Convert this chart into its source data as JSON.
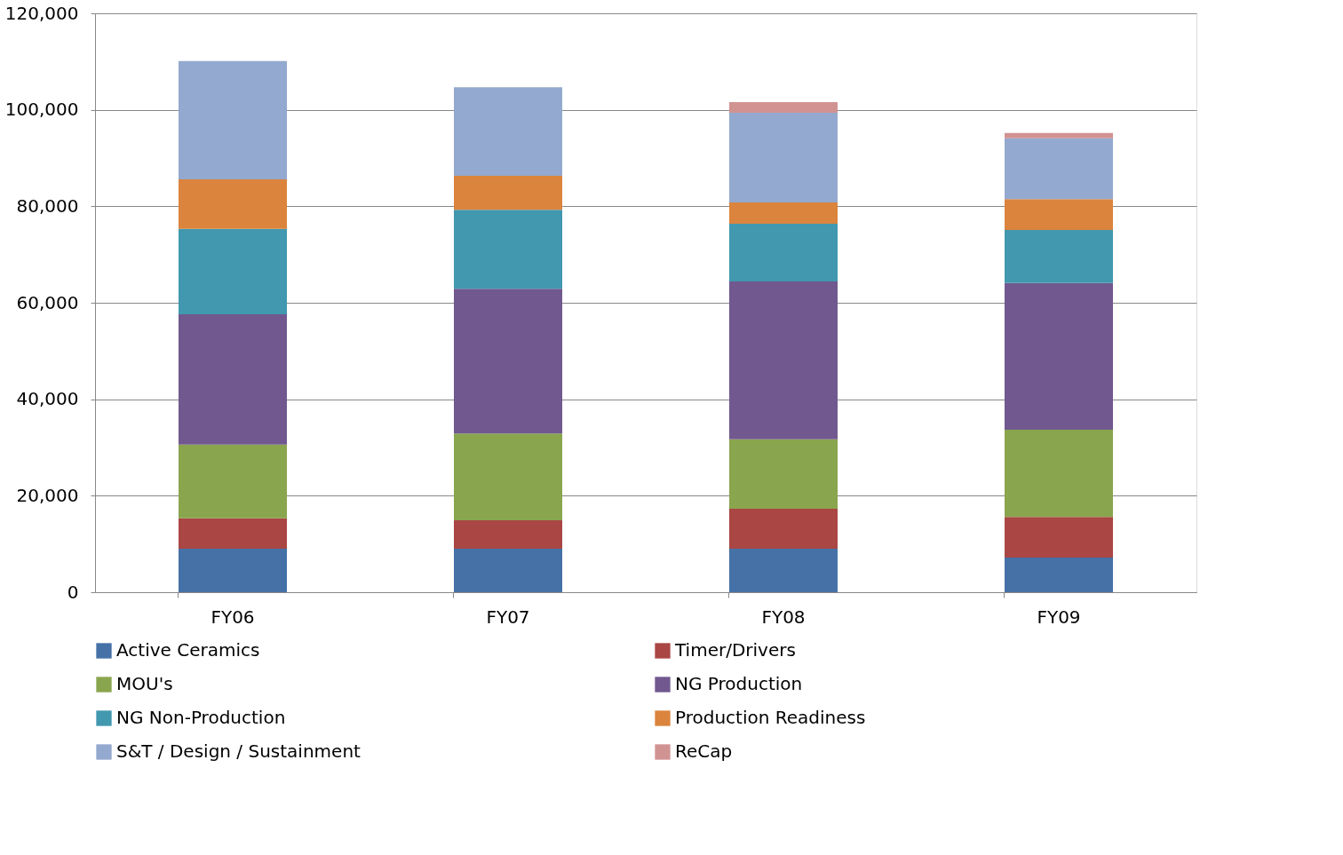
{
  "chart_data": {
    "type": "bar",
    "stacked": true,
    "categories": [
      "FY06",
      "FY07",
      "FY08",
      "FY09"
    ],
    "series": [
      {
        "name": "Active Ceramics",
        "color": "#4571a7",
        "values": [
          9000,
          9000,
          9000,
          7200
        ]
      },
      {
        "name": "Timer/Drivers",
        "color": "#aa4643",
        "values": [
          6300,
          5900,
          8300,
          8400
        ]
      },
      {
        "name": "MOU's",
        "color": "#89a54e",
        "values": [
          15300,
          18000,
          14400,
          18100
        ]
      },
      {
        "name": "NG Production",
        "color": "#71588f",
        "values": [
          27000,
          30000,
          32700,
          30400
        ]
      },
      {
        "name": "NG Non-Production",
        "color": "#4198af",
        "values": [
          17700,
          16400,
          12000,
          11000
        ]
      },
      {
        "name": "Production Readiness",
        "color": "#db843d",
        "values": [
          10300,
          7000,
          4400,
          6400
        ]
      },
      {
        "name": "S&T / Design / Sustainment",
        "color": "#93a9cf",
        "values": [
          24500,
          18400,
          18600,
          12600
        ]
      },
      {
        "name": "ReCap",
        "color": "#d19392",
        "values": [
          0,
          0,
          2200,
          1100
        ]
      }
    ],
    "ylim": [
      0,
      120000
    ],
    "yticks": [
      0,
      {
        "value": 20000,
        "label": "20,000"
      },
      {
        "value": 40000,
        "label": "40,000"
      },
      {
        "value": 60000,
        "label": "60,000"
      },
      {
        "value": 80000,
        "label": "80,000"
      },
      {
        "value": 100000,
        "label": "100,000"
      },
      {
        "value": 120000,
        "label": "120,000"
      }
    ],
    "grid": "y",
    "legend": "bottom"
  }
}
